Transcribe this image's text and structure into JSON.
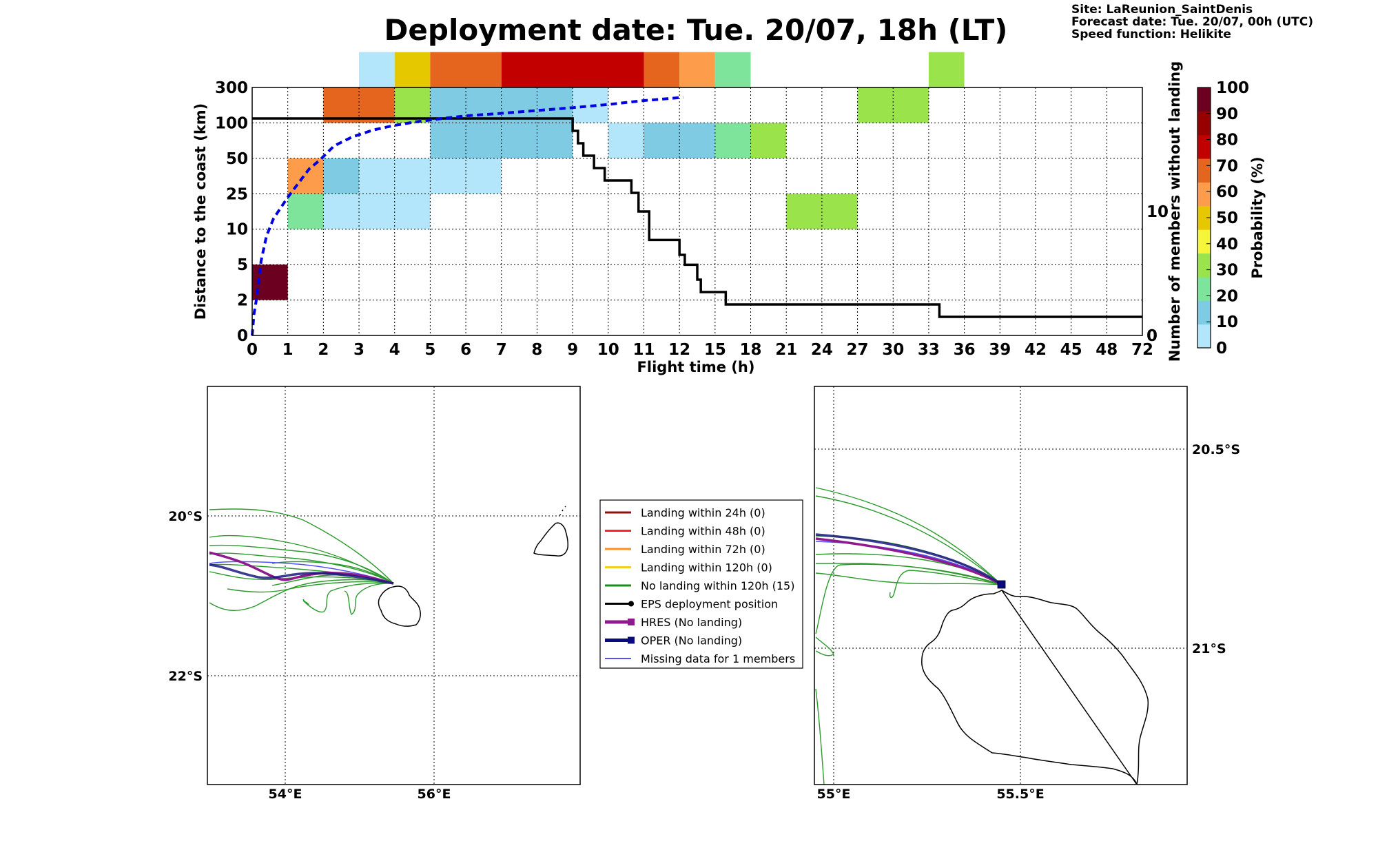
{
  "header": {
    "title": "Deployment date: Tue. 20/07, 18h (LT)",
    "site": "Site: LaReunion_SaintDenis",
    "forecast_date": "Forecast date: Tue. 20/07, 00h (UTC)",
    "speed_function": "Speed function: Helikite"
  },
  "chart_data": [
    {
      "type": "heatmap",
      "xlabel": "Flight time (h)",
      "ylabel": "Distance to the coast (km)",
      "y2label": "Number of members without landing",
      "x_ticks": [
        "0",
        "1",
        "2",
        "3",
        "4",
        "5",
        "6",
        "7",
        "8",
        "9",
        "10",
        "11",
        "12",
        "15",
        "18",
        "21",
        "24",
        "27",
        "30",
        "33",
        "36",
        "39",
        "42",
        "45",
        "48",
        "72"
      ],
      "y_ticks": [
        "0",
        "2",
        "5",
        "10",
        "25",
        "50",
        "100",
        "300"
      ],
      "y2_ticks": [
        "0",
        "10"
      ],
      "y2lim": [
        0,
        20
      ],
      "grid": true,
      "colorbar": {
        "label": "Probability (%)",
        "ticks": [
          "0",
          "10",
          "20",
          "30",
          "40",
          "50",
          "60",
          "70",
          "80",
          "90",
          "100"
        ],
        "colors": [
          "#b3e5fb",
          "#7ecbe3",
          "#7ee39b",
          "#9be34a",
          "#f5f53a",
          "#e5c800",
          "#fd9c4a",
          "#e5651e",
          "#c20000",
          "#980000",
          "#6b0020"
        ]
      },
      "cells_note": "each cell: time bin index x0..x1 (on tick index scale), distance band index, probability class",
      "cells": [
        {
          "x0": 0,
          "x1": 1,
          "band": 1,
          "probability": 100
        },
        {
          "x0": 1,
          "x1": 2,
          "band": 3,
          "probability": 20
        },
        {
          "x0": 1,
          "x1": 2,
          "band": 4,
          "probability": 60
        },
        {
          "x0": 2,
          "x1": 5,
          "band": 3,
          "probability": 0
        },
        {
          "x0": 2,
          "x1": 3,
          "band": 4,
          "probability": 10
        },
        {
          "x0": 3,
          "x1": 7,
          "band": 4,
          "probability": 0
        },
        {
          "x0": 2,
          "x1": 4,
          "band": 6,
          "probability": 70
        },
        {
          "x0": 4,
          "x1": 5,
          "band": 6,
          "probability": 30
        },
        {
          "x0": 5,
          "x1": 9,
          "band": 5,
          "probability": 10
        },
        {
          "x0": 5,
          "x1": 9,
          "band": 6,
          "probability": 10
        },
        {
          "x0": 9,
          "x1": 10,
          "band": 6,
          "probability": 0
        },
        {
          "x0": 3,
          "x1": 4,
          "band": 7,
          "probability": 0
        },
        {
          "x0": 4,
          "x1": 5,
          "band": 7,
          "probability": 50
        },
        {
          "x0": 5,
          "x1": 7,
          "band": 7,
          "probability": 70
        },
        {
          "x0": 7,
          "x1": 11,
          "band": 7,
          "probability": 80
        },
        {
          "x0": 11,
          "x1": 12,
          "band": 7,
          "probability": 70
        },
        {
          "x0": 12,
          "x1": 13,
          "band": 7,
          "probability": 60
        },
        {
          "x0": 13,
          "x1": 14,
          "band": 7,
          "probability": 20
        },
        {
          "x0": 10,
          "x1": 11,
          "band": 5,
          "probability": 0
        },
        {
          "x0": 11,
          "x1": 13,
          "band": 5,
          "probability": 10
        },
        {
          "x0": 13,
          "x1": 14,
          "band": 5,
          "probability": 20
        },
        {
          "x0": 14,
          "x1": 15,
          "band": 5,
          "probability": 30
        },
        {
          "x0": 15,
          "x1": 17,
          "band": 3,
          "probability": 30
        },
        {
          "x0": 17,
          "x1": 19,
          "band": 6,
          "probability": 30
        },
        {
          "x0": 19,
          "x1": 20,
          "band": 7,
          "probability": 30
        }
      ],
      "series": [
        {
          "kind": "members-without-landing",
          "color": "#000000",
          "points": [
            [
              0,
              17.5
            ],
            [
              8.9,
              17.5
            ],
            [
              9.0,
              16.5
            ],
            [
              9.15,
              15.5
            ],
            [
              9.3,
              14.5
            ],
            [
              9.6,
              13.5
            ],
            [
              9.9,
              12.5
            ],
            [
              10.65,
              11.5
            ],
            [
              10.85,
              10
            ],
            [
              11.15,
              7.7
            ],
            [
              12.0,
              6.5
            ],
            [
              12.15,
              5.7
            ],
            [
              12.5,
              4.5
            ],
            [
              12.6,
              3.5
            ],
            [
              13.3,
              2.5
            ],
            [
              19.3,
              1.5
            ],
            [
              25,
              1.5
            ]
          ]
        },
        {
          "kind": "mean-distance",
          "color": "#0000e0",
          "style": "dashed",
          "points": [
            [
              0,
              0
            ],
            [
              0.05,
              0.6
            ],
            [
              0.15,
              1.2
            ],
            [
              0.25,
              2.1
            ],
            [
              0.4,
              2.8
            ],
            [
              0.6,
              3.3
            ],
            [
              0.8,
              3.6
            ],
            [
              1.0,
              3.9
            ],
            [
              1.3,
              4.3
            ],
            [
              1.6,
              4.7
            ],
            [
              1.9,
              4.95
            ],
            [
              2.3,
              5.35
            ],
            [
              2.8,
              5.6
            ],
            [
              3.4,
              5.8
            ],
            [
              4.0,
              5.93
            ],
            [
              4.6,
              6.03
            ],
            [
              5.3,
              6.12
            ],
            [
              6.0,
              6.2
            ],
            [
              7.0,
              6.27
            ],
            [
              8.0,
              6.35
            ],
            [
              9.0,
              6.43
            ],
            [
              10.0,
              6.52
            ],
            [
              11.0,
              6.63
            ],
            [
              12.1,
              6.72
            ]
          ]
        }
      ]
    },
    {
      "type": "map",
      "name": "regional-map",
      "lon_ticks": [
        "54°E",
        "56°E"
      ],
      "lat_ticks": [
        "20°S",
        "22°S"
      ],
      "grid": true
    },
    {
      "type": "map",
      "name": "zoom-map",
      "lon_ticks": [
        "55°E",
        "55.5°E"
      ],
      "lat_ticks": [
        "20.5°S",
        "21°S"
      ],
      "grid": true
    }
  ],
  "legend": {
    "items": [
      {
        "label": "Landing within 24h (0)",
        "color": "#8b1010",
        "marker": "none",
        "width": 3
      },
      {
        "label": "Landing within 48h (0)",
        "color": "#ff2020",
        "marker": "none",
        "width": 3
      },
      {
        "label": "Landing within 72h (0)",
        "color": "#ff9020",
        "marker": "none",
        "width": 3
      },
      {
        "label": "Landing within 120h (0)",
        "color": "#f0d020",
        "marker": "none",
        "width": 3
      },
      {
        "label": "No landing within 120h (15)",
        "color": "#1c8a1c",
        "marker": "none",
        "width": 3
      },
      {
        "label": "EPS deployment position",
        "color": "#000000",
        "marker": "circle",
        "width": 3
      },
      {
        "label": "HRES (No landing)",
        "color": "#8e1a8e",
        "marker": "square",
        "width": 5
      },
      {
        "label": "OPER (No landing)",
        "color": "#0a0a80",
        "marker": "square",
        "width": 5
      },
      {
        "label": "Missing data for 1 members",
        "color": "#5050ff",
        "marker": "none",
        "width": 2
      }
    ]
  }
}
